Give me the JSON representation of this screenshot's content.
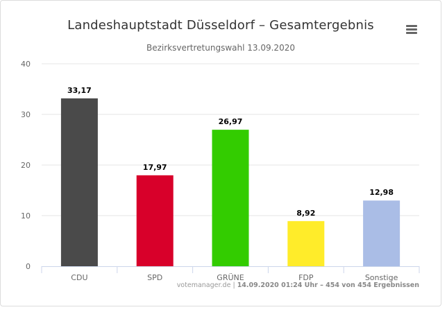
{
  "header": {
    "title": "Landeshauptstadt Düsseldorf – Gesamtergebnis",
    "subtitle": "Bezirksvertretungswahl 13.09.2020",
    "menu_icon": "hamburger-menu-icon"
  },
  "credits": {
    "source": "votemanager.de",
    "separator": "|",
    "status": "14.09.2020 01:24 Uhr – 454 von 454 Ergebnissen"
  },
  "chart_data": {
    "type": "bar",
    "title": "Landeshauptstadt Düsseldorf – Gesamtergebnis",
    "subtitle": "Bezirksvertretungswahl 13.09.2020",
    "xlabel": "",
    "ylabel": "",
    "categories": [
      "CDU",
      "SPD",
      "GRÜNE",
      "FDP",
      "Sonstige"
    ],
    "values": [
      33.17,
      17.97,
      26.97,
      8.92,
      12.98
    ],
    "value_labels": [
      "33,17",
      "17,97",
      "26,97",
      "8,92",
      "12,98"
    ],
    "colors": [
      "#4a4a4a",
      "#d8002a",
      "#33cc00",
      "#ffec2a",
      "#aabde6"
    ],
    "ylim": [
      0,
      40
    ],
    "yticks": [
      0,
      10,
      20,
      30,
      40
    ],
    "ytick_labels": [
      "0",
      "10",
      "20",
      "30",
      "40"
    ],
    "grid": true,
    "legend": "none"
  }
}
